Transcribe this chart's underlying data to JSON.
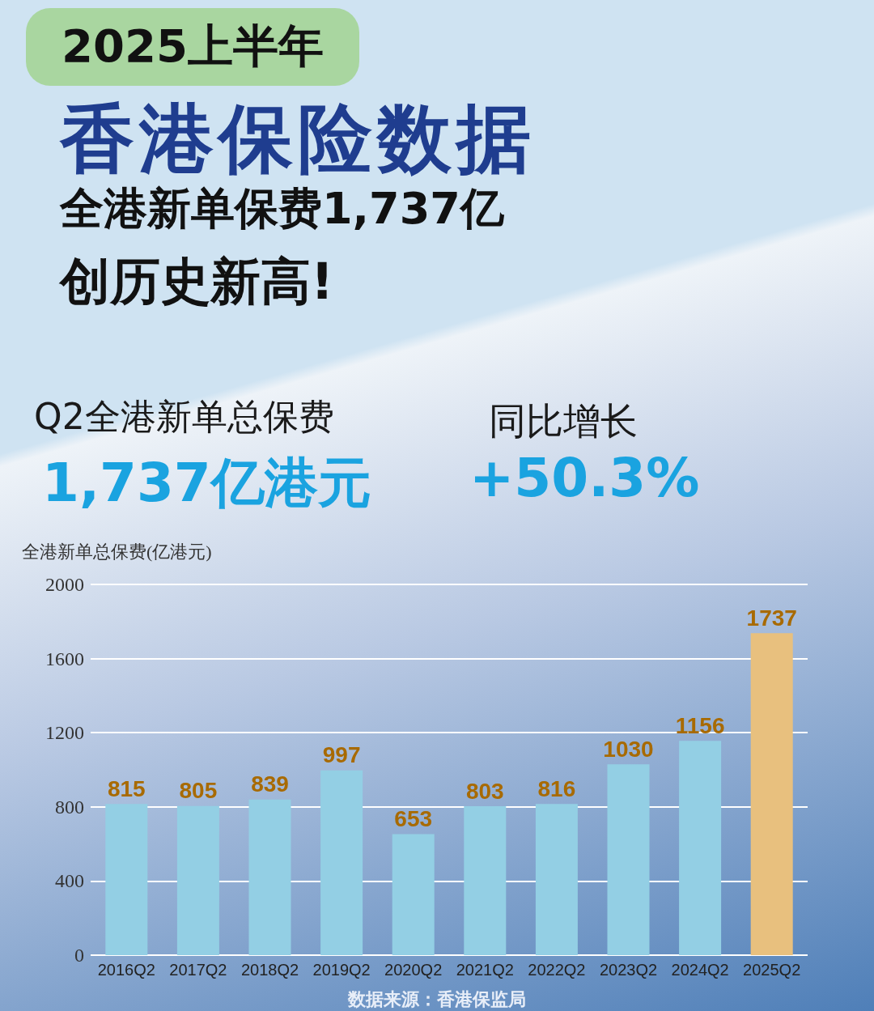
{
  "chart_data": {
    "type": "bar",
    "title": "2025上半年",
    "subtitle": "香港保险数据",
    "ylabel": "全港新单总保费(亿港元)",
    "annotations": [
      "全港新单保费1,737亿",
      "创历史新高!",
      "Q2全港新单总保费",
      "1,737亿港元",
      "同比增长",
      "+50.3%",
      "数据来源：香港保监局"
    ],
    "categories": [
      "2016Q2",
      "2017Q2",
      "2018Q2",
      "2019Q2",
      "2020Q2",
      "2021Q2",
      "2022Q2",
      "2023Q2",
      "2024Q2",
      "2025Q2"
    ],
    "values": [
      815,
      805,
      839,
      997,
      653,
      803,
      816,
      1030,
      1156,
      1737
    ],
    "colors": [
      "#93cfe4",
      "#93cfe4",
      "#93cfe4",
      "#93cfe4",
      "#93cfe4",
      "#93cfe4",
      "#93cfe4",
      "#93cfe4",
      "#93cfe4",
      "#e8c07e"
    ],
    "ylim": [
      0,
      2000
    ],
    "yticks": [
      0,
      400,
      800,
      1200,
      1600,
      2000
    ],
    "grid": "y",
    "data_labels": true
  }
}
